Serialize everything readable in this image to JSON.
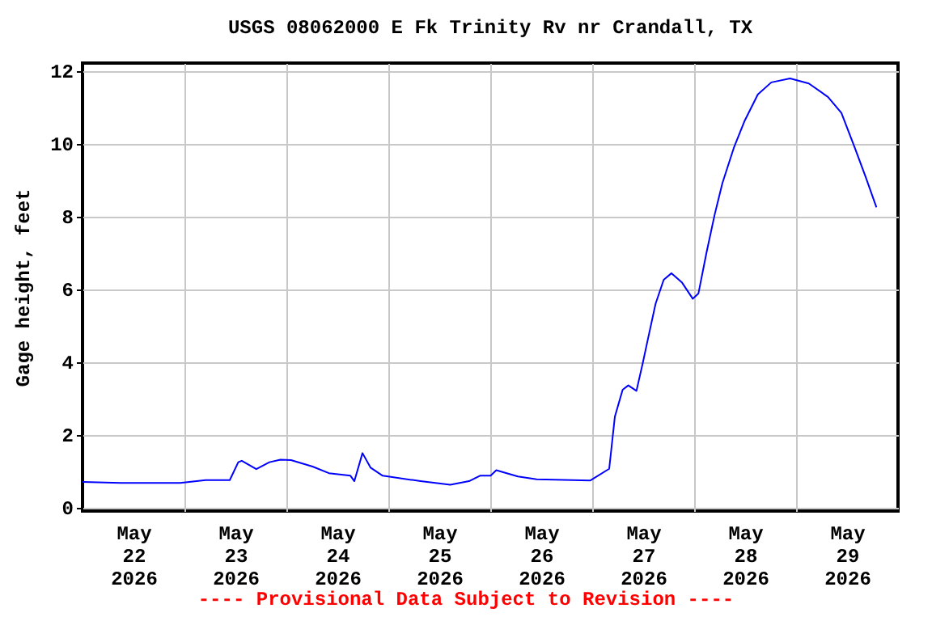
{
  "chart_data": {
    "type": "line",
    "title": "USGS 08062000 E Fk Trinity Rv nr Crandall, TX",
    "ylabel": "Gage height, feet",
    "annotations": [
      "---- Provisional Data Subject to Revision ----"
    ],
    "x": [
      "2026-05-22T00:00",
      "2026-05-22T09:00",
      "2026-05-22T23:00",
      "2026-05-23T05:00",
      "2026-05-23T10:40",
      "2026-05-23T12:40",
      "2026-05-23T13:30",
      "2026-05-23T16:55",
      "2026-05-23T20:00",
      "2026-05-23T22:35",
      "2026-05-24T01:05",
      "2026-05-24T06:10",
      "2026-05-24T10:00",
      "2026-05-24T15:05",
      "2026-05-24T16:00",
      "2026-05-24T17:55",
      "2026-05-24T19:50",
      "2026-05-24T22:40",
      "2026-05-25T07:35",
      "2026-05-25T14:35",
      "2026-05-25T19:00",
      "2026-05-25T21:35",
      "2026-05-26T00:05",
      "2026-05-26T01:25",
      "2026-05-26T06:30",
      "2026-05-26T10:55",
      "2026-05-26T23:35",
      "2026-05-27T04:00",
      "2026-05-27T05:20",
      "2026-05-27T07:10",
      "2026-05-27T08:30",
      "2026-05-27T10:25",
      "2026-05-27T11:55",
      "2026-05-27T13:00",
      "2026-05-27T14:55",
      "2026-05-27T16:50",
      "2026-05-27T18:40",
      "2026-05-27T21:10",
      "2026-05-27T23:40",
      "2026-05-28T01:00",
      "2026-05-28T02:55",
      "2026-05-28T04:50",
      "2026-05-28T06:40",
      "2026-05-28T09:20",
      "2026-05-28T11:50",
      "2026-05-28T15:00",
      "2026-05-28T18:10",
      "2026-05-28T22:35",
      "2026-05-29T03:00",
      "2026-05-29T07:30",
      "2026-05-29T10:40",
      "2026-05-29T13:50",
      "2026-05-29T16:25",
      "2026-05-29T18:55"
    ],
    "series": [
      {
        "color": "#0000ff",
        "values": [
          0.7,
          0.67,
          0.67,
          0.75,
          0.75,
          1.24,
          1.28,
          1.05,
          1.24,
          1.31,
          1.3,
          1.12,
          0.94,
          0.87,
          0.72,
          1.49,
          1.09,
          0.87,
          0.72,
          0.62,
          0.72,
          0.87,
          0.87,
          1.02,
          0.85,
          0.77,
          0.74,
          1.06,
          2.49,
          3.23,
          3.35,
          3.2,
          3.97,
          4.56,
          5.59,
          6.25,
          6.43,
          6.17,
          5.73,
          5.87,
          7.0,
          8.04,
          8.91,
          9.87,
          10.6,
          11.34,
          11.67,
          11.78,
          11.64,
          11.27,
          10.83,
          9.87,
          9.06,
          8.24
        ]
      }
    ],
    "xlim": [
      "2026-05-22T00:00",
      "2026-05-30T00:00"
    ],
    "xticks": [
      {
        "value": "2026-05-22T12:00",
        "label": "May\n22\n2026"
      },
      {
        "value": "2026-05-23T00:00",
        "label": null
      },
      {
        "value": "2026-05-23T12:00",
        "label": "May\n23\n2026"
      },
      {
        "value": "2026-05-24T00:00",
        "label": null
      },
      {
        "value": "2026-05-24T12:00",
        "label": "May\n24\n2026"
      },
      {
        "value": "2026-05-25T00:00",
        "label": null
      },
      {
        "value": "2026-05-25T12:00",
        "label": "May\n25\n2026"
      },
      {
        "value": "2026-05-26T00:00",
        "label": null
      },
      {
        "value": "2026-05-26T12:00",
        "label": "May\n26\n2026"
      },
      {
        "value": "2026-05-27T00:00",
        "label": null
      },
      {
        "value": "2026-05-27T12:00",
        "label": "May\n27\n2026"
      },
      {
        "value": "2026-05-28T00:00",
        "label": null
      },
      {
        "value": "2026-05-28T12:00",
        "label": "May\n28\n2026"
      },
      {
        "value": "2026-05-29T00:00",
        "label": null
      },
      {
        "value": "2026-05-29T12:00",
        "label": "May\n29\n2026"
      }
    ],
    "ylim": [
      -0.1,
      12.2
    ],
    "yticks": [
      0,
      2,
      4,
      6,
      8,
      10,
      12
    ],
    "grid": true
  }
}
